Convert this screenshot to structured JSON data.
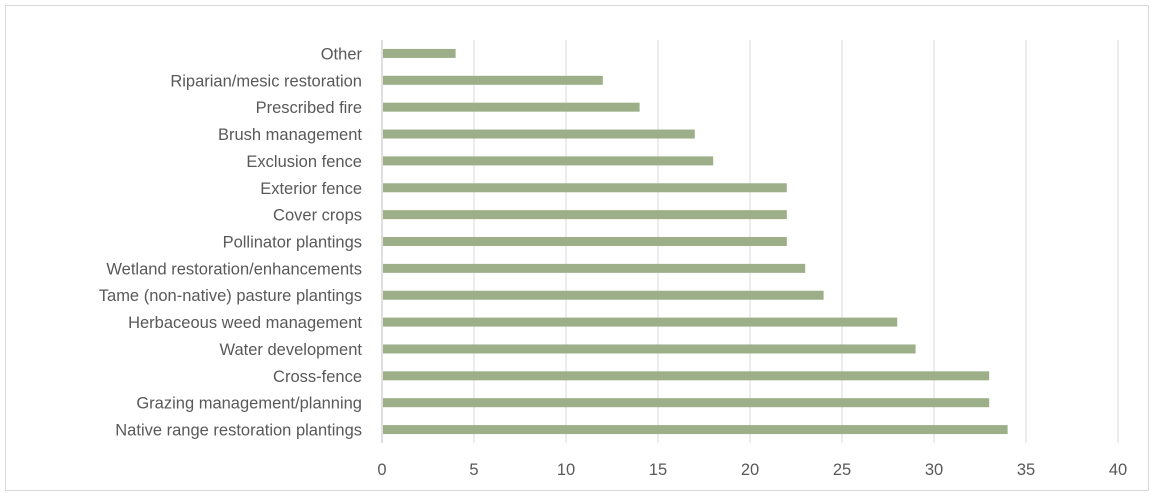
{
  "chart_data": {
    "type": "bar",
    "orientation": "horizontal",
    "categories": [
      "Native range restoration plantings",
      "Grazing management/planning",
      "Cross-fence",
      "Water development",
      "Herbaceous weed management",
      "Tame (non-native) pasture plantings",
      "Wetland restoration/enhancements",
      "Pollinator plantings",
      "Cover crops",
      "Exterior fence",
      "Exclusion fence",
      "Brush management",
      "Prescribed fire",
      "Riparian/mesic restoration",
      "Other"
    ],
    "values": [
      34,
      33,
      33,
      29,
      28,
      24,
      23,
      22,
      22,
      22,
      18,
      17,
      14,
      12,
      4
    ],
    "xlim": [
      0,
      40
    ],
    "xticks": [
      0,
      5,
      10,
      15,
      20,
      25,
      30,
      35,
      40
    ],
    "grid": "vertical",
    "legend": "none",
    "bar_color": "#9caf88"
  }
}
